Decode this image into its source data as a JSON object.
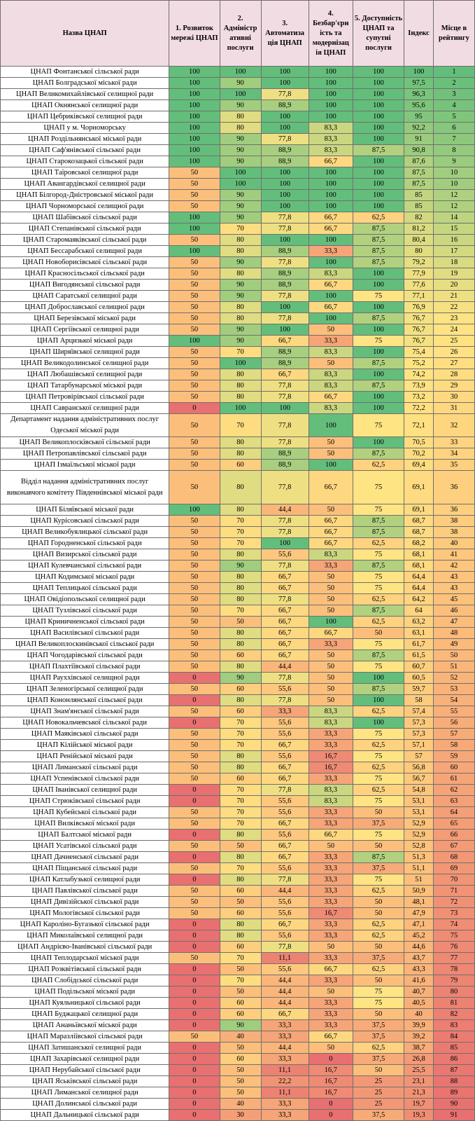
{
  "headers": {
    "name": "Назва ЦНАП",
    "c1": "1. Розвиток мережі ЦНАП",
    "c2": "2. Адміністр ативні послуги",
    "c3": "3. Автоматиза ція ЦНАП",
    "c4": "4. Безбар'єрн ість та модернізац ія ЦНАП",
    "c5": "5. Доступність ЦНАП та супутні послуги",
    "index": "Індекс",
    "rank": "Місце в рейтингу"
  },
  "rows": [
    [
      "ЦНАП Фонтанської сільської ради",
      "100",
      "100",
      "100",
      "100",
      "100",
      "100",
      "1"
    ],
    [
      "ЦНАП Болградської міської ради",
      "100",
      "90",
      "100",
      "100",
      "100",
      "97,5",
      "2"
    ],
    [
      "ЦНАП Великомихайлівської селищної ради",
      "100",
      "100",
      "77,8",
      "100",
      "100",
      "96,3",
      "3"
    ],
    [
      "ЦНАП Окнянської селищної ради",
      "100",
      "90",
      "88,9",
      "100",
      "100",
      "95,6",
      "4"
    ],
    [
      "ЦНАП Цебриківської селищної ради",
      "100",
      "80",
      "100",
      "100",
      "100",
      "95",
      "5"
    ],
    [
      "ЦНАП у м. Чорноморську",
      "100",
      "80",
      "100",
      "83,3",
      "100",
      "92,2",
      "6"
    ],
    [
      "ЦНАП Роздільнянської міської ради",
      "100",
      "90",
      "77,8",
      "83,3",
      "100",
      "91",
      "7"
    ],
    [
      "ЦНАП Саф'янівської сільської ради",
      "100",
      "90",
      "88,9",
      "83,3",
      "87,5",
      "90,8",
      "8"
    ],
    [
      "ЦНАП Старокозацької сільської ради",
      "100",
      "90",
      "88,9",
      "66,7",
      "100",
      "87,6",
      "9"
    ],
    [
      "ЦНАП Таїровської селищної ради",
      "50",
      "100",
      "100",
      "100",
      "100",
      "87,5",
      "10"
    ],
    [
      "ЦНАП Авангардівської селищної ради",
      "50",
      "100",
      "100",
      "100",
      "100",
      "87,5",
      "10"
    ],
    [
      "ЦНАП Білгород-Дністровської міської ради",
      "50",
      "90",
      "100",
      "100",
      "100",
      "85",
      "12"
    ],
    [
      "ЦНАП Чорноморської селищної ради",
      "50",
      "90",
      "100",
      "100",
      "100",
      "85",
      "12"
    ],
    [
      "ЦНАП Шабівської сільської ради",
      "100",
      "90",
      "77,8",
      "66,7",
      "62,5",
      "82",
      "14"
    ],
    [
      "ЦНАП Степанівської сільської ради",
      "100",
      "70",
      "77,8",
      "66,7",
      "87,5",
      "81,2",
      "15"
    ],
    [
      "ЦНАП Старомаяківської сільської ради",
      "50",
      "80",
      "100",
      "100",
      "87,5",
      "80,4",
      "16"
    ],
    [
      "ЦНАП Бессарабської селищної ради",
      "100",
      "80",
      "88,9",
      "33,3",
      "87,5",
      "80",
      "17"
    ],
    [
      "ЦНАП Новоборисівської сільської ради",
      "50",
      "90",
      "77,8",
      "100",
      "87,5",
      "79,2",
      "18"
    ],
    [
      "ЦНАП Красносільської сільської ради",
      "50",
      "80",
      "88,9",
      "83,3",
      "100",
      "77,9",
      "19"
    ],
    [
      "ЦНАП Вигодянської сільської ради",
      "50",
      "90",
      "88,9",
      "66,7",
      "100",
      "77,6",
      "20"
    ],
    [
      "ЦНАП Саратської селищної ради",
      "50",
      "90",
      "77,8",
      "100",
      "75",
      "77,1",
      "21"
    ],
    [
      "ЦНАП Доброславської селищної ради",
      "50",
      "80",
      "100",
      "66,7",
      "100",
      "76,9",
      "22"
    ],
    [
      "ЦНАП Березівської міської ради",
      "50",
      "80",
      "77,8",
      "100",
      "87,5",
      "76,7",
      "23"
    ],
    [
      "ЦНАП Сергіївської селищної ради",
      "50",
      "90",
      "100",
      "50",
      "100",
      "76,7",
      "24"
    ],
    [
      "ЦНАП Арцизької міської ради",
      "100",
      "90",
      "66,7",
      "33,3",
      "75",
      "76,7",
      "25"
    ],
    [
      "ЦНАП Ширяївської селищної ради",
      "50",
      "70",
      "88,9",
      "83,3",
      "100",
      "75,4",
      "26"
    ],
    [
      "ЦНАП Великодолинської селищної ради",
      "50",
      "100",
      "88,9",
      "50",
      "87,5",
      "75,2",
      "27"
    ],
    [
      "ЦНАП Любашівської селищної ради",
      "50",
      "80",
      "66,7",
      "83,3",
      "100",
      "74,2",
      "28"
    ],
    [
      "ЦНАП Татарбунарської міської ради",
      "50",
      "80",
      "77,8",
      "83,3",
      "87,5",
      "73,9",
      "29"
    ],
    [
      "ЦНАП Петровірівської сільської ради",
      "50",
      "80",
      "77,8",
      "66,7",
      "100",
      "73,2",
      "30"
    ],
    [
      "ЦНАП Савранської селищної ради",
      "0",
      "100",
      "100",
      "83,3",
      "100",
      "72,2",
      "31"
    ],
    [
      "Департамент надання адміністративних послуг Одеської міської ради",
      "50",
      "70",
      "77,8",
      "100",
      "75",
      "72,1",
      "32"
    ],
    [
      "ЦНАП Великоплосківської сільської ради",
      "50",
      "80",
      "77,8",
      "50",
      "100",
      "70,5",
      "33"
    ],
    [
      "ЦНАП Петропавлівської сільської ради",
      "50",
      "80",
      "88,9",
      "50",
      "87,5",
      "70,2",
      "34"
    ],
    [
      "ЦНАП Ізмаїльської міської ради",
      "50",
      "60",
      "88,9",
      "100",
      "62,5",
      "69,4",
      "35"
    ],
    [
      "Відділ надання адміністративних послуг виконавчого комітету Південнівської міської ради",
      "50",
      "80",
      "77,8",
      "66,7",
      "75",
      "69,1",
      "36"
    ],
    [
      "ЦНАП Біляївської міської ради",
      "100",
      "80",
      "44,4",
      "50",
      "75",
      "69,1",
      "36"
    ],
    [
      "ЦНАП Курісовської сільської ради",
      "50",
      "70",
      "77,8",
      "66,7",
      "87,5",
      "68,7",
      "38"
    ],
    [
      "ЦНАП Великобуялицької сільської ради",
      "50",
      "70",
      "77,8",
      "66,7",
      "87,5",
      "68,7",
      "38"
    ],
    [
      "ЦНАП Городненської сільської ради",
      "50",
      "70",
      "100",
      "66,7",
      "62,5",
      "68,2",
      "40"
    ],
    [
      "ЦНАП Визирської сільської ради",
      "50",
      "80",
      "55,6",
      "83,3",
      "75",
      "68,1",
      "41"
    ],
    [
      "ЦНАП Кулевчанської сільської ради",
      "50",
      "90",
      "77,8",
      "33,3",
      "87,5",
      "68,1",
      "42"
    ],
    [
      "ЦНАП Кодимської міської ради",
      "50",
      "80",
      "66,7",
      "50",
      "75",
      "64,4",
      "43"
    ],
    [
      "ЦНАП Теплицької сільської ради",
      "50",
      "80",
      "66,7",
      "50",
      "75",
      "64,4",
      "43"
    ],
    [
      "ЦНАП Овідіопольської селищної ради",
      "50",
      "80",
      "77,8",
      "50",
      "62,5",
      "64,2",
      "45"
    ],
    [
      "ЦНАП Тузлівської сільської ради",
      "50",
      "70",
      "66,7",
      "50",
      "87,5",
      "64",
      "46"
    ],
    [
      "ЦНАП Криничненської сільської ради",
      "50",
      "50",
      "66,7",
      "100",
      "62,5",
      "63,2",
      "47"
    ],
    [
      "ЦНАП Василівської сільської ради",
      "50",
      "80",
      "66,7",
      "66,7",
      "50",
      "63,1",
      "48"
    ],
    [
      "ЦНАП Великоплоскинівської сільської ради",
      "50",
      "80",
      "66,7",
      "33,3",
      "75",
      "61,7",
      "49"
    ],
    [
      "ЦНАП Чогодарівської сільської ради",
      "50",
      "60",
      "66,7",
      "50",
      "87,5",
      "61,5",
      "50"
    ],
    [
      "ЦНАП Плахтіївської сільської ради",
      "50",
      "80",
      "44,4",
      "50",
      "75",
      "60,7",
      "51"
    ],
    [
      "ЦНАП Рауххівської селищної ради",
      "0",
      "90",
      "77,8",
      "50",
      "100",
      "60,5",
      "52"
    ],
    [
      "ЦНАП Зеленогірської селищної ради",
      "50",
      "60",
      "55,6",
      "50",
      "87,5",
      "59,7",
      "53"
    ],
    [
      "ЦНАП Кононлянської сільської ради",
      "0",
      "80",
      "77,8",
      "50",
      "100",
      "58",
      "54"
    ],
    [
      "ЦНАП Знам'янської сільської ради",
      "50",
      "60",
      "33,3",
      "83,3",
      "62,5",
      "57,4",
      "55"
    ],
    [
      "ЦНАП Новокальчевської сільської ради",
      "0",
      "70",
      "55,6",
      "83,3",
      "100",
      "57,3",
      "56"
    ],
    [
      "ЦНАП Маяківської сільської ради",
      "50",
      "70",
      "55,6",
      "33,3",
      "75",
      "57,3",
      "57"
    ],
    [
      "ЦНАП Кілійської міської ради",
      "50",
      "70",
      "66,7",
      "33,3",
      "62,5",
      "57,1",
      "58"
    ],
    [
      "ЦНАП Ренійської міської ради",
      "50",
      "80",
      "55,6",
      "16,7",
      "75",
      "57",
      "59"
    ],
    [
      "ЦНАП Лиманської сільської ради",
      "50",
      "80",
      "66,7",
      "16,7",
      "62,5",
      "56,8",
      "60"
    ],
    [
      "ЦНАП Успенівської сільської ради",
      "50",
      "60",
      "66,7",
      "33,3",
      "75",
      "56,7",
      "61"
    ],
    [
      "ЦНАП Іванівської селищної ради",
      "0",
      "70",
      "77,8",
      "83,3",
      "62,5",
      "54,8",
      "62"
    ],
    [
      "ЦНАП Стрюківської сільської ради",
      "0",
      "70",
      "55,6",
      "83,3",
      "75",
      "53,1",
      "63"
    ],
    [
      "ЦНАП Кубейської сільської ради",
      "50",
      "70",
      "55,6",
      "33,3",
      "50",
      "53,1",
      "64"
    ],
    [
      "ЦНАП Вилківської міської ради",
      "50",
      "70",
      "66,7",
      "33,3",
      "37,5",
      "52,9",
      "65"
    ],
    [
      "ЦНАП Балтської міської ради",
      "0",
      "80",
      "55,6",
      "66,7",
      "75",
      "52,9",
      "66"
    ],
    [
      "ЦНАП Усатівської сільської ради",
      "50",
      "50",
      "66,7",
      "50",
      "50",
      "52,8",
      "67"
    ],
    [
      "ЦНАП Дачненської сільської ради",
      "0",
      "80",
      "66,7",
      "33,3",
      "87,5",
      "51,3",
      "68"
    ],
    [
      "ЦНАП Піщанської сільської ради",
      "50",
      "70",
      "55,6",
      "33,3",
      "37,5",
      "51,1",
      "69"
    ],
    [
      "ЦНАП Катлабузької селищної ради",
      "0",
      "80",
      "77,8",
      "33,3",
      "75",
      "51",
      "70"
    ],
    [
      "ЦНАП Павлівської сільської ради",
      "50",
      "60",
      "44,4",
      "33,3",
      "62,5",
      "50,9",
      "71"
    ],
    [
      "ЦНАП Дивізійської сільської ради",
      "50",
      "50",
      "55,6",
      "33,3",
      "50",
      "48,1",
      "72"
    ],
    [
      "ЦНАП Мологівської сільської ради",
      "50",
      "60",
      "55,6",
      "16,7",
      "50",
      "47,9",
      "73"
    ],
    [
      "ЦНАП Кароліно-Бугазької сільської ради",
      "0",
      "80",
      "66,7",
      "33,3",
      "62,5",
      "47,1",
      "74"
    ],
    [
      "ЦНАП Миколаївської селищної ради",
      "0",
      "80",
      "55,6",
      "33,3",
      "62,5",
      "45,2",
      "75"
    ],
    [
      "ЦНАП Андрієво-Іванівської сільської ради",
      "0",
      "60",
      "77,8",
      "50",
      "50",
      "44,6",
      "76"
    ],
    [
      "ЦНАП Теплодарської міської ради",
      "50",
      "70",
      "11,1",
      "33,3",
      "37,5",
      "43,7",
      "77"
    ],
    [
      "ЦНАП Розквітівської сільської ради",
      "0",
      "50",
      "55,6",
      "66,7",
      "62,5",
      "43,3",
      "78"
    ],
    [
      "ЦНАП Слобідської сільської ради",
      "0",
      "70",
      "44,4",
      "33,3",
      "50",
      "41,6",
      "79"
    ],
    [
      "ЦНАП Подільської міської ради",
      "0",
      "50",
      "44,4",
      "50",
      "75",
      "40,7",
      "80"
    ],
    [
      "ЦНАП Куяльницької сільської ради",
      "0",
      "60",
      "44,4",
      "33,3",
      "75",
      "40,5",
      "81"
    ],
    [
      "ЦНАП Буджацької селищної ради",
      "0",
      "60",
      "66,7",
      "33,3",
      "50",
      "40",
      "82"
    ],
    [
      "ЦНАП Ананьївської міської ради",
      "0",
      "90",
      "33,3",
      "33,3",
      "37,5",
      "39,9",
      "83"
    ],
    [
      "ЦНАП Маразліївської сільської ради",
      "50",
      "40",
      "33,3",
      "66,7",
      "37,5",
      "39,2",
      "84"
    ],
    [
      "ЦНАП Затишанської селищної ради",
      "0",
      "50",
      "44,4",
      "50",
      "62,5",
      "38,7",
      "85"
    ],
    [
      "ЦНАП Захарівської селищної ради",
      "0",
      "60",
      "33,3",
      "0",
      "37,5",
      "26,8",
      "86"
    ],
    [
      "ЦНАП Нерубайської сільської ради",
      "0",
      "50",
      "11,1",
      "16,7",
      "50",
      "25,5",
      "87"
    ],
    [
      "ЦНАП Яськівської сільської ради",
      "0",
      "50",
      "22,2",
      "16,7",
      "25",
      "23,1",
      "88"
    ],
    [
      "ЦНАП Лиманської селищної ради",
      "0",
      "50",
      "11,1",
      "16,7",
      "25",
      "21,3",
      "89"
    ],
    [
      "ЦНАП Долинської сільської ради",
      "0",
      "40",
      "33,3",
      "0",
      "25",
      "19,7",
      "90"
    ],
    [
      "ЦНАП Дальницької сільської ради",
      "0",
      "30",
      "33,3",
      "0",
      "37,5",
      "19,3",
      "91"
    ]
  ]
}
